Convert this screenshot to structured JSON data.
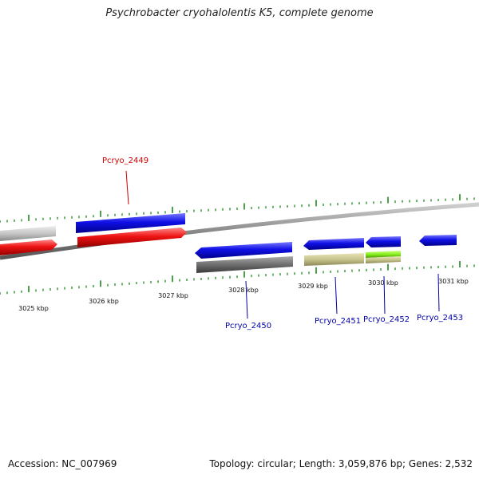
{
  "title": "Psychrobacter cryohalolentis K5, complete genome",
  "footer": {
    "accession": "Accession: NC_007969",
    "summary": "Topology: circular; Length: 3,059,876 bp; Genes: 2,532"
  },
  "colors": {
    "cds_blue": "#1010e6",
    "cds_red": "#ee1212",
    "gene_light_gray": "#c6c6c6",
    "gene_dark_gray": "#6e6e6e",
    "gene_tan": "#c8c48c",
    "gene_green": "#88f020",
    "backbone": "#8a8a8a",
    "tick_green": "#1c8a1c",
    "label_red": "#cc0000",
    "label_blue": "#0000aa"
  },
  "scale_labels": [
    "3025 kbp",
    "3026 kbp",
    "3027 kbp",
    "3028 kbp",
    "3029 kbp",
    "3030 kbp",
    "3031 kbp"
  ],
  "gene_labels": [
    "Pcryo_2449",
    "Pcryo_2450",
    "Pcryo_2451",
    "Pcryo_2452",
    "Pcryo_2453"
  ]
}
